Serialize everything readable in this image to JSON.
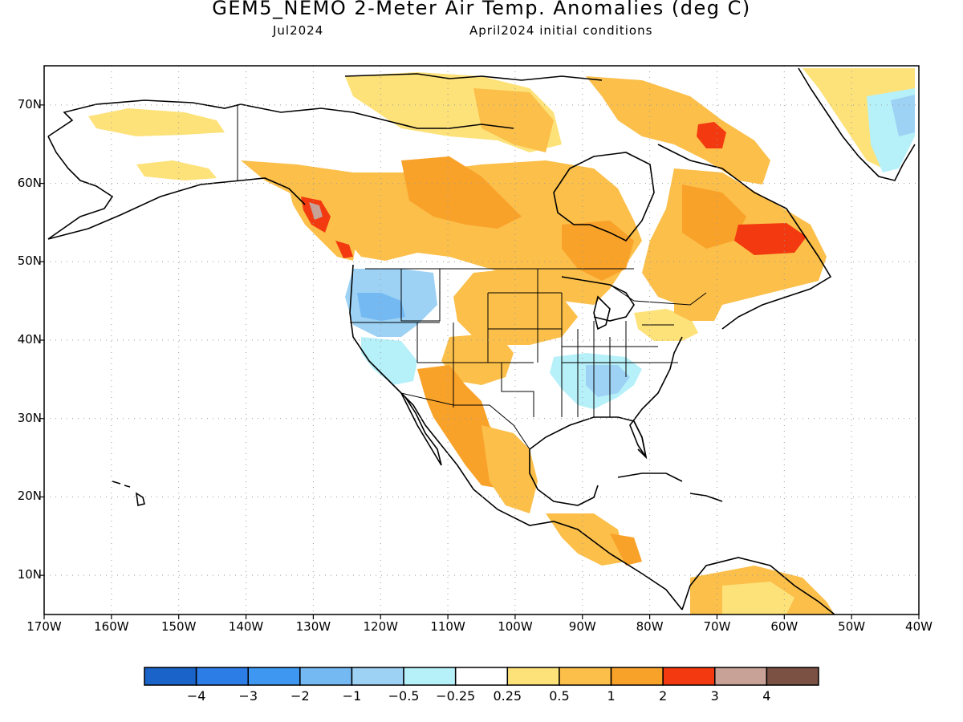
{
  "header": {
    "title": "GEM5_NEMO 2-Meter Air Temp. Anomalies (deg C)",
    "valid_month": "Jul2024",
    "init_conditions": "April2024 initial conditions"
  },
  "map": {
    "projection": "equirectangular",
    "lon_range": [
      -170,
      -40
    ],
    "lat_range": [
      5,
      75
    ],
    "grid": true,
    "lat_labels": [
      "70N",
      "60N",
      "50N",
      "40N",
      "30N",
      "20N",
      "10N"
    ],
    "lon_labels": [
      "170W",
      "160W",
      "150W",
      "140W",
      "130W",
      "120W",
      "110W",
      "100W",
      "90W",
      "80W",
      "70W",
      "60W",
      "50W",
      "40W"
    ]
  },
  "colorbar": {
    "colors": [
      "#1a63c8",
      "#2d7de6",
      "#3e97f0",
      "#75b9f2",
      "#9dd2f5",
      "#b6f0f8",
      "#ffffff",
      "#fde27a",
      "#fbbf4a",
      "#f9a22a",
      "#f3390f",
      "#c8a197",
      "#7b5143"
    ],
    "labels": [
      "−4",
      "−3",
      "−2",
      "−1",
      "−0.5",
      "−0.25",
      "0.25",
      "0.5",
      "1",
      "2",
      "3",
      "4"
    ]
  }
}
